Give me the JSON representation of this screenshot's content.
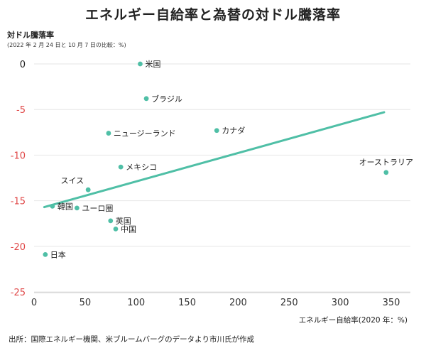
{
  "title": "エネルギー自給率と為替の対ドル騰落率",
  "source_note": "出所：国際エネルギー機関、米ブルームバーグのデータより市川氏が作成",
  "colors": {
    "accent": "#4fbfa6",
    "negative_tick": "#e04848",
    "zero_tick": "#222222",
    "grid": "#e6e6e6"
  },
  "chart_data": {
    "type": "scatter",
    "title": "エネルギー自給率と為替の対ドル騰落率",
    "ylabel": "対ドル騰落率",
    "ylabel_note": "(2022 年 2 月 24 日と 10 月 7 日の比較：%)",
    "xlabel": "エネルギー自給率(2020 年：%)",
    "xlim": [
      0,
      360
    ],
    "ylim": [
      -25,
      1
    ],
    "xticks": [
      0,
      50,
      100,
      150,
      200,
      250,
      300,
      350
    ],
    "yticks": [
      0,
      -5,
      -10,
      -15,
      -20,
      -25
    ],
    "grid": "horizontal",
    "points": [
      {
        "name": "米国",
        "x": 104,
        "y": 0
      },
      {
        "name": "ブラジル",
        "x": 110,
        "y": -3.8
      },
      {
        "name": "カナダ",
        "x": 179,
        "y": -7.3
      },
      {
        "name": "ニュージーランド",
        "x": 73,
        "y": -7.6
      },
      {
        "name": "オーストラリア",
        "x": 345,
        "y": -11.9
      },
      {
        "name": "メキシコ",
        "x": 85,
        "y": -11.3
      },
      {
        "name": "スイス",
        "x": 53,
        "y": -13.8
      },
      {
        "name": "韓国",
        "x": 18,
        "y": -15.6
      },
      {
        "name": "ユーロ圏",
        "x": 42,
        "y": -15.8
      },
      {
        "name": "英国",
        "x": 75,
        "y": -17.2
      },
      {
        "name": "中国",
        "x": 80,
        "y": -18.1
      },
      {
        "name": "日本",
        "x": 11,
        "y": -20.9
      }
    ],
    "trendline": {
      "x": [
        10,
        343
      ],
      "y": [
        -15.7,
        -5.3
      ]
    }
  }
}
